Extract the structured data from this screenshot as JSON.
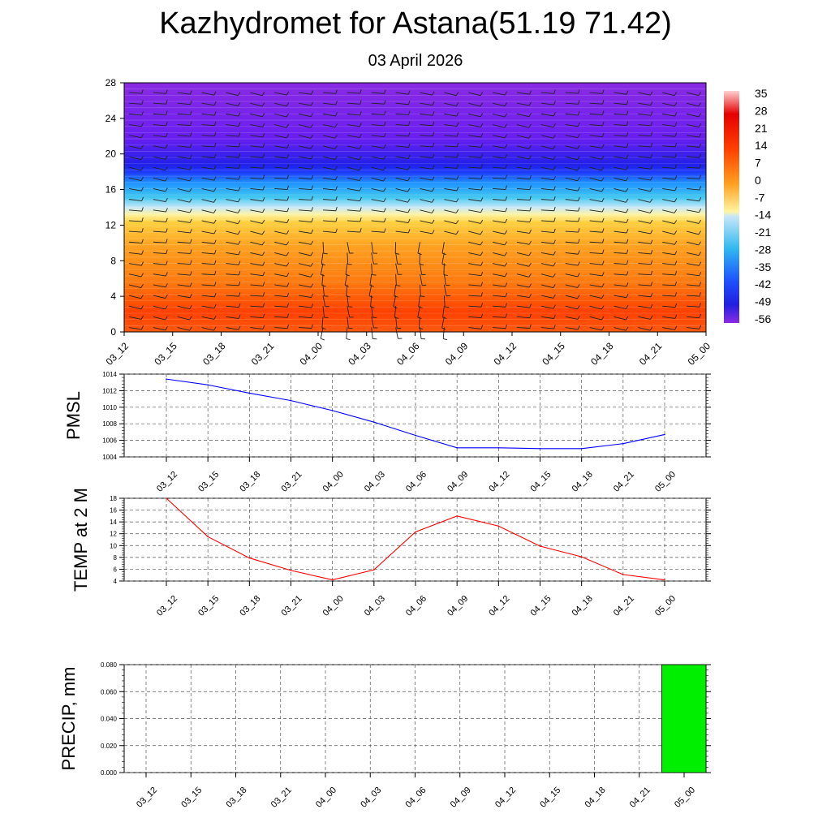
{
  "title": "Kazhydromet for Astana(51.19 71.42)",
  "subtitle": "03 April 2026",
  "chart_data": [
    {
      "type": "heatmap",
      "name": "vertical cross-section temperature with wind barbs",
      "x_categories": [
        "03_12",
        "03_15",
        "03_18",
        "03_21",
        "04_00",
        "04_03",
        "04_06",
        "04_09",
        "04_12",
        "04_15",
        "04_18",
        "04_21",
        "05_00"
      ],
      "y_ticks": [
        0,
        4,
        8,
        12,
        16,
        20,
        24,
        28
      ],
      "ylim": [
        0,
        28
      ],
      "colorbar": {
        "labels": [
          "35",
          "28",
          "21",
          "14",
          "7",
          "0",
          "-7",
          "-14",
          "-21",
          "-28",
          "-35",
          "-42",
          "-49",
          "-56"
        ]
      },
      "temperature_profile_levels": [
        0,
        2,
        4,
        6,
        8,
        10,
        12,
        13,
        14,
        15,
        16,
        17,
        18,
        19,
        20,
        22,
        24,
        26,
        28
      ],
      "temperature_profile_values": [
        14,
        13,
        11,
        8,
        6,
        3,
        -2,
        -16,
        -23,
        -30,
        -40,
        -50,
        -58,
        -62,
        -64,
        -62,
        -64,
        -64,
        -64
      ]
    },
    {
      "type": "line",
      "ylabel": "PMSL",
      "x": [
        "03_12",
        "03_15",
        "03_18",
        "03_21",
        "04_00",
        "04_03",
        "04_06",
        "04_09",
        "04_12",
        "04_15",
        "04_18",
        "04_21",
        "05_00"
      ],
      "values": [
        1013.4,
        1012.7,
        1011.7,
        1010.8,
        1009.6,
        1008.2,
        1006.6,
        1005.1,
        1005.1,
        1005.0,
        1005.0,
        1005.6,
        1006.7
      ],
      "ylim": [
        1004,
        1014
      ],
      "yticks": [
        "1004",
        "1006",
        "1008",
        "1010",
        "1012",
        "1014"
      ],
      "color": "#0000ff"
    },
    {
      "type": "line",
      "ylabel": "TEMP at 2 M",
      "x": [
        "03_12",
        "03_15",
        "03_18",
        "03_21",
        "04_00",
        "04_03",
        "04_06",
        "04_09",
        "04_12",
        "04_15",
        "04_18",
        "04_21",
        "05_00"
      ],
      "values": [
        18.0,
        11.5,
        7.9,
        5.8,
        4.2,
        5.9,
        12.3,
        15.0,
        13.3,
        9.9,
        8.1,
        5.1,
        4.2
      ],
      "ylim": [
        4,
        18
      ],
      "yticks": [
        "4",
        "6",
        "8",
        "10",
        "12",
        "14",
        "16",
        "18"
      ],
      "color": "#ff0000"
    },
    {
      "type": "bar",
      "ylabel": "PRECIP, mm",
      "categories": [
        "03_12",
        "03_15",
        "03_18",
        "03_21",
        "04_00",
        "04_03",
        "04_06",
        "04_09",
        "04_12",
        "04_15",
        "04_18",
        "04_21",
        "05_00"
      ],
      "values": [
        0,
        0,
        0,
        0,
        0,
        0,
        0,
        0,
        0,
        0,
        0,
        0,
        0.08
      ],
      "ylim": [
        0,
        0.08
      ],
      "yticks": [
        "0.000",
        "0.020",
        "0.040",
        "0.060",
        "0.080"
      ],
      "color": "#00ee00"
    }
  ]
}
